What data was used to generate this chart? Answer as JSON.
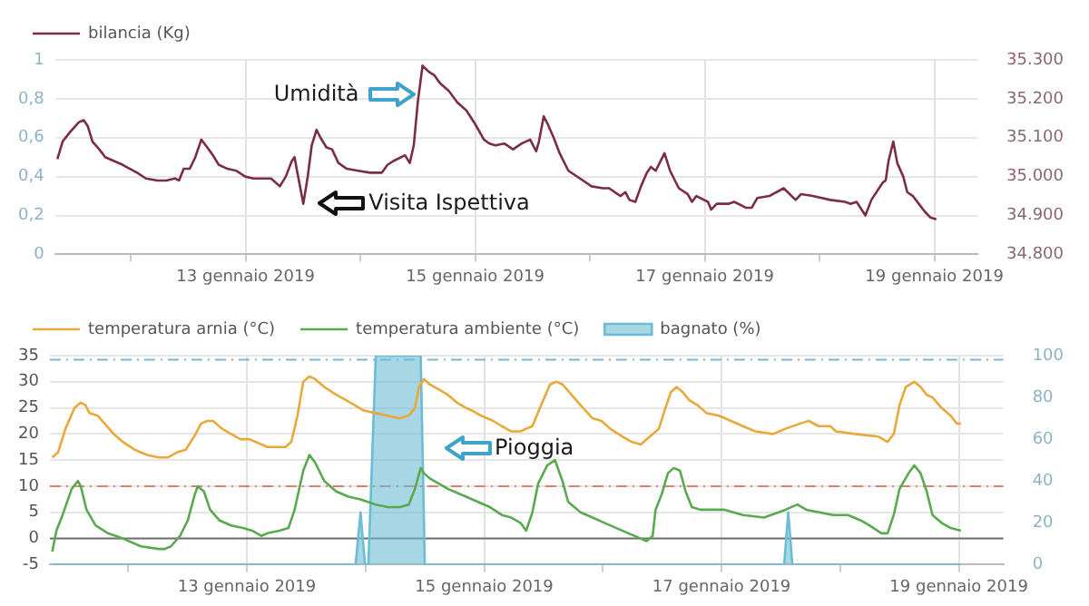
{
  "chart_data": [
    {
      "type": "line",
      "xlim": [
        "2019-01-11T08:10",
        "2019-01-19T09:00"
      ],
      "xticks": [
        {
          "value": "2019-01-12",
          "label": null
        },
        {
          "value": "2019-01-13",
          "label": "13 gennaio 2019"
        },
        {
          "value": "2019-01-14",
          "label": null
        },
        {
          "value": "2019-01-15",
          "label": "15 gennaio 2019"
        },
        {
          "value": "2019-01-16",
          "label": null
        },
        {
          "value": "2019-01-17",
          "label": "17 gennaio 2019"
        },
        {
          "value": "2019-01-18",
          "label": null
        },
        {
          "value": "2019-01-19",
          "label": "19 gennaio 2019"
        }
      ],
      "ylim": [
        0,
        1
      ],
      "yticks": [
        0,
        {
          "value": 0.2,
          "label": "0,2"
        },
        {
          "value": 0.4,
          "label": "0,4"
        },
        {
          "value": 0.6,
          "label": "0,6"
        },
        {
          "value": 0.8,
          "label": "0,8"
        },
        1
      ],
      "y2lim": [
        34800,
        35300
      ],
      "y2ticks": [
        {
          "value": 34800,
          "label": "34.800"
        },
        {
          "value": 34900,
          "label": "34.900"
        },
        {
          "value": 35000,
          "label": "35.000"
        },
        {
          "value": 35100,
          "label": "35.100"
        },
        {
          "value": 35200,
          "label": "35.200"
        },
        {
          "value": 35300,
          "label": "35.300"
        }
      ],
      "grid": true,
      "legend": "top",
      "marker": "none",
      "annotations": [
        {
          "text": "Umidità",
          "x": "2019-01-14T11:50",
          "y": 0.82
        },
        {
          "text": "Visita Ispettiva",
          "x": "2019-01-13T12:05",
          "y": 0.26
        }
      ],
      "series": [
        {
          "name": "bilancia (Kg)",
          "color": "#7b2d42",
          "axis": "y2",
          "x": [
            "2019-01-11T08:40",
            "2019-01-11T09:45",
            "2019-01-11T11:20",
            "2019-01-11T13:10",
            "2019-01-11T14:10",
            "2019-01-11T15:00",
            "2019-01-11T16:00",
            "2019-01-11T17:25",
            "2019-01-11T18:40",
            "2019-01-11T20:30",
            "2019-01-11T22:20",
            "2019-01-12T01:20",
            "2019-01-12T03:10",
            "2019-01-12T05:35",
            "2019-01-12T07:25",
            "2019-01-12T09:15",
            "2019-01-12T10:05",
            "2019-01-12T11:05",
            "2019-01-12T12:20",
            "2019-01-12T13:30",
            "2019-01-12T14:45",
            "2019-01-12T16:00",
            "2019-01-12T17:10",
            "2019-01-12T18:25",
            "2019-01-12T20:15",
            "2019-01-12T22:05",
            "2019-01-12T23:55",
            "2019-01-13T01:40",
            "2019-01-13T03:30",
            "2019-01-13T05:20",
            "2019-01-13T07:10",
            "2019-01-13T08:25",
            "2019-01-13T09:40",
            "2019-01-13T10:15",
            "2019-01-13T10:50",
            "2019-01-13T12:05",
            "2019-01-13T13:00",
            "2019-01-13T13:50",
            "2019-01-13T14:50",
            "2019-01-13T15:40",
            "2019-01-13T16:55",
            "2019-01-13T18:05",
            "2019-01-13T19:25",
            "2019-01-13T21:10",
            "2019-01-13T23:35",
            "2019-01-14T02:05",
            "2019-01-14T04:30",
            "2019-01-14T05:40",
            "2019-01-14T06:55",
            "2019-01-14T09:20",
            "2019-01-14T10:20",
            "2019-01-14T11:10",
            "2019-01-14T12:00",
            "2019-01-14T13:00",
            "2019-01-14T14:15",
            "2019-01-14T15:30",
            "2019-01-14T16:40",
            "2019-01-14T18:30",
            "2019-01-14T20:20",
            "2019-01-14T22:10",
            "2019-01-15T00:00",
            "2019-01-15T01:50",
            "2019-01-15T03:00",
            "2019-01-15T04:15",
            "2019-01-15T06:05",
            "2019-01-15T07:55",
            "2019-01-15T09:45",
            "2019-01-15T11:30",
            "2019-01-15T12:45",
            "2019-01-15T13:20",
            "2019-01-15T14:20",
            "2019-01-15T15:10",
            "2019-01-15T16:25",
            "2019-01-15T17:40",
            "2019-01-15T19:30",
            "2019-01-15T21:55",
            "2019-01-16T00:20",
            "2019-01-16T02:45",
            "2019-01-16T04:00",
            "2019-01-16T05:10",
            "2019-01-16T06:25",
            "2019-01-16T07:25",
            "2019-01-16T08:15",
            "2019-01-16T09:30",
            "2019-01-16T10:40",
            "2019-01-16T11:55",
            "2019-01-16T12:45",
            "2019-01-16T13:45",
            "2019-01-16T15:35",
            "2019-01-16T16:45",
            "2019-01-16T18:35",
            "2019-01-16T20:25",
            "2019-01-16T21:20",
            "2019-01-16T22:15",
            "2019-01-17T00:40",
            "2019-01-17T01:20",
            "2019-01-17T02:30",
            "2019-01-17T04:55",
            "2019-01-17T06:10",
            "2019-01-17T08:35",
            "2019-01-17T09:50",
            "2019-01-17T11:00",
            "2019-01-17T13:30",
            "2019-01-17T16:30",
            "2019-01-17T19:00",
            "2019-01-17T20:10",
            "2019-01-17T22:35",
            "2019-01-18T02:15",
            "2019-01-18T05:20",
            "2019-01-18T06:30",
            "2019-01-18T07:45",
            "2019-01-18T09:35",
            "2019-01-18T10:50",
            "2019-01-18T13:15",
            "2019-01-18T13:50",
            "2019-01-18T14:25",
            "2019-01-18T15:25",
            "2019-01-18T16:15",
            "2019-01-18T17:30",
            "2019-01-18T18:20",
            "2019-01-18T19:30",
            "2019-01-18T20:45",
            "2019-01-18T22:00",
            "2019-01-18T23:10",
            "2019-01-19T00:25"
          ],
          "values": [
            35045,
            35090,
            35115,
            35140,
            35145,
            35130,
            35090,
            35070,
            35050,
            35040,
            35030,
            35010,
            34995,
            34990,
            34990,
            34995,
            34990,
            35020,
            35020,
            35050,
            35095,
            35075,
            35055,
            35030,
            35020,
            35015,
            35000,
            34995,
            34995,
            34995,
            34975,
            35000,
            35040,
            35050,
            35010,
            34930,
            35000,
            35080,
            35120,
            35100,
            35075,
            35070,
            35035,
            35020,
            35015,
            35010,
            35010,
            35030,
            35040,
            35055,
            35035,
            35080,
            35190,
            35285,
            35270,
            35260,
            35240,
            35220,
            35190,
            35170,
            35135,
            35095,
            35085,
            35080,
            35085,
            35070,
            35085,
            35095,
            35065,
            35090,
            35155,
            35135,
            35100,
            35060,
            35015,
            34995,
            34975,
            34970,
            34970,
            34960,
            34950,
            34960,
            34940,
            34935,
            34975,
            35010,
            35025,
            35015,
            35060,
            35015,
            34970,
            34955,
            34935,
            34950,
            34935,
            34915,
            34930,
            34930,
            34935,
            34920,
            34920,
            34945,
            34950,
            34970,
            34940,
            34955,
            34950,
            34940,
            34935,
            34930,
            34935,
            34900,
            34940,
            34985,
            34990,
            35040,
            35090,
            35035,
            35000,
            34960,
            34950,
            34930,
            34910,
            34895,
            34890
          ]
        }
      ]
    },
    {
      "type": "line",
      "xlim": [
        "2019-01-11T08:10",
        "2019-01-19T09:00"
      ],
      "xticks": [
        {
          "value": "2019-01-12",
          "label": null
        },
        {
          "value": "2019-01-13",
          "label": "13 gennaio 2019"
        },
        {
          "value": "2019-01-14",
          "label": null
        },
        {
          "value": "2019-01-15",
          "label": "15 gennaio 2019"
        },
        {
          "value": "2019-01-16",
          "label": null
        },
        {
          "value": "2019-01-17",
          "label": "17 gennaio 2019"
        },
        {
          "value": "2019-01-18",
          "label": null
        },
        {
          "value": "2019-01-19",
          "label": "19 gennaio 2019"
        }
      ],
      "ylim": [
        -5,
        35
      ],
      "yticks": [
        -5,
        0,
        5,
        10,
        15,
        20,
        25,
        30,
        35
      ],
      "y2lim": [
        0,
        100
      ],
      "y2ticks": [
        0,
        20,
        40,
        60,
        80,
        100
      ],
      "grid": true,
      "legend": "top",
      "marker": "none",
      "ref_lines": [
        {
          "axis": "y",
          "value": 0,
          "color": "#707070",
          "line_style": "solid"
        },
        {
          "axis": "y",
          "value": 10,
          "color": "#e0806a",
          "line_style": "dashed"
        },
        {
          "axis": "y2",
          "value": 98,
          "color": "#7ab8d6",
          "line_style": "dashed"
        }
      ],
      "annotations": [
        {
          "text": "Pioggia",
          "x": "2019-01-14T12:55",
          "y": 17.2
        }
      ],
      "series": [
        {
          "name": "bagnato (%)",
          "type": "area",
          "color": "#6cbcd4",
          "axis": "y2",
          "x": [
            "2019-01-11T08:40",
            "2019-01-13T22:00",
            "2019-01-13T23:00",
            "2019-01-13T23:55",
            "2019-01-14T00:35",
            "2019-01-14T02:05",
            "2019-01-14T11:10",
            "2019-01-14T12:00",
            "2019-01-17T12:40",
            "2019-01-17T13:30",
            "2019-01-17T14:20",
            "2019-01-19T00:25"
          ],
          "values": [
            0,
            0,
            25,
            0,
            0,
            100,
            100,
            0,
            0,
            25,
            0,
            0
          ]
        },
        {
          "name": "temperatura arnia (°C)",
          "color": "#e8a93a",
          "x": [
            "2019-01-11T08:40",
            "2019-01-11T09:50",
            "2019-01-11T11:20",
            "2019-01-11T13:10",
            "2019-01-11T14:25",
            "2019-01-11T15:25",
            "2019-01-11T16:10",
            "2019-01-11T17:50",
            "2019-01-11T19:15",
            "2019-01-11T21:05",
            "2019-01-11T22:55",
            "2019-01-12T01:20",
            "2019-01-12T03:50",
            "2019-01-12T06:10",
            "2019-01-12T08:00",
            "2019-01-12T09:55",
            "2019-01-12T11:40",
            "2019-01-12T13:20",
            "2019-01-12T14:45",
            "2019-01-12T16:00",
            "2019-01-12T17:10",
            "2019-01-12T19:00",
            "2019-01-12T20:50",
            "2019-01-12T22:40",
            "2019-01-13T00:30",
            "2019-01-13T04:10",
            "2019-01-13T07:50",
            "2019-01-13T09:00",
            "2019-01-13T10:15",
            "2019-01-13T11:25",
            "2019-01-13T12:40",
            "2019-01-13T13:50",
            "2019-01-13T15:40",
            "2019-01-13T18:05",
            "2019-01-13T20:00",
            "2019-01-13T21:50",
            "2019-01-13T23:35",
            "2019-01-14T02:05",
            "2019-01-14T04:30",
            "2019-01-14T06:55",
            "2019-01-14T08:45",
            "2019-01-14T10:00",
            "2019-01-14T10:50",
            "2019-01-14T11:50",
            "2019-01-14T13:00",
            "2019-01-14T14:50",
            "2019-01-14T16:40",
            "2019-01-14T18:30",
            "2019-01-14T20:20",
            "2019-01-14T21:30",
            "2019-01-14T23:25",
            "2019-01-15T01:50",
            "2019-01-15T03:35",
            "2019-01-15T05:30",
            "2019-01-15T07:20",
            "2019-01-15T08:30",
            "2019-01-15T09:45",
            "2019-01-15T11:30",
            "2019-01-15T13:20",
            "2019-01-15T14:35",
            "2019-01-15T15:50",
            "2019-01-15T17:40",
            "2019-01-15T19:30",
            "2019-01-15T21:55",
            "2019-01-15T23:45",
            "2019-01-16T01:30",
            "2019-01-16T04:00",
            "2019-01-16T05:50",
            "2019-01-16T07:40",
            "2019-01-16T09:30",
            "2019-01-16T11:20",
            "2019-01-16T12:30",
            "2019-01-16T13:45",
            "2019-01-16T14:55",
            "2019-01-16T16:10",
            "2019-01-16T17:25",
            "2019-01-16T19:10",
            "2019-01-16T21:00",
            "2019-01-16T23:30",
            "2019-01-17T01:55",
            "2019-01-17T04:20",
            "2019-01-17T06:50",
            "2019-01-17T10:25",
            "2019-01-17T12:55",
            "2019-01-17T15:55",
            "2019-01-17T17:40",
            "2019-01-17T19:35",
            "2019-01-17T22:00",
            "2019-01-17T23:10",
            "2019-01-18T02:55",
            "2019-01-18T07:45",
            "2019-01-18T09:35",
            "2019-01-18T10:50",
            "2019-01-18T12:00",
            "2019-01-18T13:15",
            "2019-01-18T15:00",
            "2019-01-18T16:15",
            "2019-01-18T17:30",
            "2019-01-18T18:40",
            "2019-01-18T20:30",
            "2019-01-18T22:20",
            "2019-01-18T23:35",
            "2019-01-19T00:25"
          ],
          "values": [
            15.5,
            16.5,
            21,
            25,
            26,
            25.5,
            24,
            23.5,
            22,
            20,
            18.5,
            17,
            16,
            15.5,
            15.5,
            16.5,
            17,
            19.5,
            22,
            22.5,
            22.5,
            21,
            20,
            19,
            19,
            17.5,
            17.5,
            18.5,
            23.5,
            30,
            31,
            30.5,
            29,
            27.5,
            26.5,
            25.5,
            24.5,
            24,
            23.5,
            23,
            23.5,
            25,
            29,
            30.5,
            29.5,
            28.5,
            27.5,
            26,
            25,
            24.5,
            23.5,
            22.5,
            21.5,
            20.5,
            20.5,
            21,
            21.5,
            25.5,
            29.5,
            30,
            29.5,
            27.5,
            25.5,
            23,
            22.5,
            21,
            19.5,
            18.5,
            18,
            19.5,
            21,
            24.5,
            28,
            29,
            28,
            26.5,
            25.5,
            24,
            23.5,
            22.5,
            21.5,
            20.5,
            20,
            21,
            22,
            22.5,
            21.5,
            21.5,
            20.5,
            20,
            19.5,
            18.5,
            20,
            25.5,
            29,
            30,
            29,
            27.5,
            27,
            25,
            23.5,
            22,
            22
          ]
        },
        {
          "name": "temperatura ambiente (°C)",
          "color": "#5aa84f",
          "x": [
            "2019-01-11T08:40",
            "2019-01-11T09:30",
            "2019-01-11T10:45",
            "2019-01-11T12:35",
            "2019-01-11T13:50",
            "2019-01-11T14:25",
            "2019-01-11T15:35",
            "2019-01-11T17:25",
            "2019-01-11T19:55",
            "2019-01-11T22:55",
            "2019-01-12T02:35",
            "2019-01-12T06:10",
            "2019-01-12T07:25",
            "2019-01-12T08:40",
            "2019-01-12T10:30",
            "2019-01-12T12:05",
            "2019-01-12T13:30",
            "2019-01-12T14:05",
            "2019-01-12T15:20",
            "2019-01-12T16:35",
            "2019-01-12T18:25",
            "2019-01-12T20:50",
            "2019-01-12T23:15",
            "2019-01-13T01:05",
            "2019-01-13T02:55",
            "2019-01-13T04:10",
            "2019-01-13T06:35",
            "2019-01-13T08:25",
            "2019-01-13T09:40",
            "2019-01-13T11:25",
            "2019-01-13T12:40",
            "2019-01-13T13:50",
            "2019-01-13T15:40",
            "2019-01-13T18:05",
            "2019-01-13T20:35",
            "2019-01-13T23:00",
            "2019-01-14T02:05",
            "2019-01-14T04:30",
            "2019-01-14T06:55",
            "2019-01-14T08:45",
            "2019-01-14T10:00",
            "2019-01-14T11:10",
            "2019-01-14T11:50",
            "2019-01-14T13:00",
            "2019-01-14T14:50",
            "2019-01-14T16:40",
            "2019-01-14T20:20",
            "2019-01-14T22:45",
            "2019-01-15T01:10",
            "2019-01-15T03:35",
            "2019-01-15T05:30",
            "2019-01-15T07:20",
            "2019-01-15T08:30",
            "2019-01-15T09:45",
            "2019-01-15T10:55",
            "2019-01-15T12:45",
            "2019-01-15T14:20",
            "2019-01-15T15:50",
            "2019-01-15T17:00",
            "2019-01-15T19:30",
            "2019-01-15T21:55",
            "2019-01-16T00:20",
            "2019-01-16T02:45",
            "2019-01-16T05:10",
            "2019-01-16T07:40",
            "2019-01-16T08:50",
            "2019-01-16T10:05",
            "2019-01-16T10:40",
            "2019-01-16T11:55",
            "2019-01-16T13:10",
            "2019-01-16T14:20",
            "2019-01-16T15:35",
            "2019-01-16T16:45",
            "2019-01-16T18:00",
            "2019-01-16T19:50",
            "2019-01-17T00:40",
            "2019-01-17T04:20",
            "2019-01-17T08:35",
            "2019-01-17T12:55",
            "2019-01-17T15:20",
            "2019-01-17T17:10",
            "2019-01-17T22:35",
            "2019-01-18T01:35",
            "2019-01-18T04:05",
            "2019-01-18T05:55",
            "2019-01-18T08:20",
            "2019-01-18T09:35",
            "2019-01-18T10:50",
            "2019-01-18T12:00",
            "2019-01-18T13:50",
            "2019-01-18T15:00",
            "2019-01-18T16:15",
            "2019-01-18T17:30",
            "2019-01-18T18:40",
            "2019-01-18T20:30",
            "2019-01-18T22:20",
            "2019-01-19T00:25"
          ],
          "values": [
            -2.5,
            1.5,
            4.5,
            9.5,
            11,
            10,
            5.5,
            2.5,
            1,
            0,
            -1.5,
            -2,
            -2,
            -1.5,
            0.5,
            3.5,
            8.5,
            10,
            9,
            5.5,
            3.5,
            2.5,
            2,
            1.5,
            0.5,
            1,
            1.5,
            2,
            5.5,
            13,
            16,
            14.5,
            11,
            9,
            8,
            7.5,
            6.5,
            6,
            6,
            6.5,
            9.5,
            13.5,
            12.5,
            11.5,
            10.5,
            9.5,
            8,
            7,
            6,
            4.5,
            4,
            3,
            1.5,
            5,
            10.5,
            14,
            15,
            11,
            7,
            5,
            4,
            3,
            2,
            1,
            0,
            -0.5,
            0.5,
            5.5,
            8.5,
            12.5,
            13.5,
            13,
            9,
            6,
            5.5,
            5.5,
            4.5,
            4,
            5.5,
            6.5,
            5.5,
            4.5,
            4.5,
            3.5,
            2.5,
            1,
            1,
            4.5,
            9.5,
            12.5,
            14,
            12.5,
            9,
            4.5,
            3,
            2,
            1.5
          ]
        }
      ]
    }
  ]
}
